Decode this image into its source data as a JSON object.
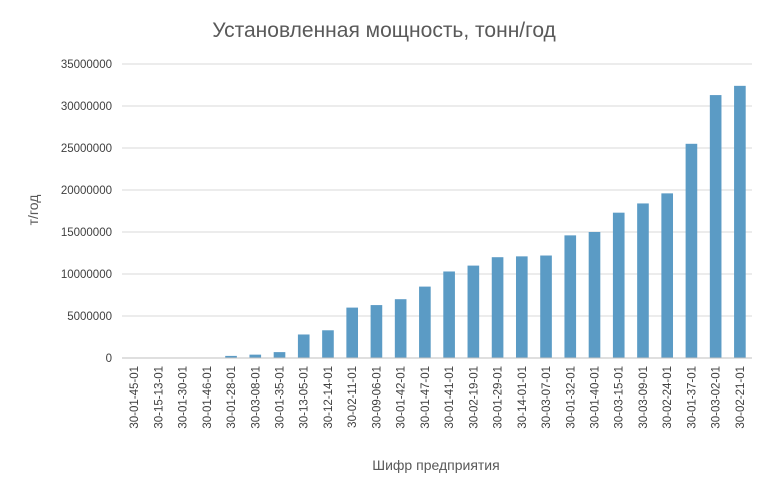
{
  "chart_data": {
    "type": "bar",
    "title": "Установленная мощность, тонн/год",
    "xlabel": "Шифр предприятия",
    "ylabel": "т/год",
    "ylim": [
      0,
      35000000
    ],
    "yticks": [
      0,
      5000000,
      10000000,
      15000000,
      20000000,
      25000000,
      30000000,
      35000000
    ],
    "grid": true,
    "legend": "none",
    "bar_color": "#5b9bc5",
    "categories": [
      "30-01-45-01",
      "30-15-13-01",
      "30-01-30-01",
      "30-01-46-01",
      "30-01-28-01",
      "30-03-08-01",
      "30-01-35-01",
      "30-13-05-01",
      "30-12-14-01",
      "30-02-11-01",
      "30-09-06-01",
      "30-01-42-01",
      "30-01-47-01",
      "30-01-41-01",
      "30-02-19-01",
      "30-01-29-01",
      "30-14-01-01",
      "30-03-07-01",
      "30-01-32-01",
      "30-01-40-01",
      "30-03-15-01",
      "30-03-09-01",
      "30-02-24-01",
      "30-01-37-01",
      "30-03-02-01",
      "30-02-21-01"
    ],
    "values": [
      5000,
      10000,
      20000,
      30000,
      250000,
      400000,
      700000,
      2800000,
      3300000,
      6000000,
      6300000,
      7000000,
      8500000,
      10300000,
      11000000,
      12000000,
      12100000,
      12200000,
      14600000,
      15000000,
      17300000,
      18400000,
      19600000,
      25500000,
      31300000,
      32400000
    ]
  }
}
